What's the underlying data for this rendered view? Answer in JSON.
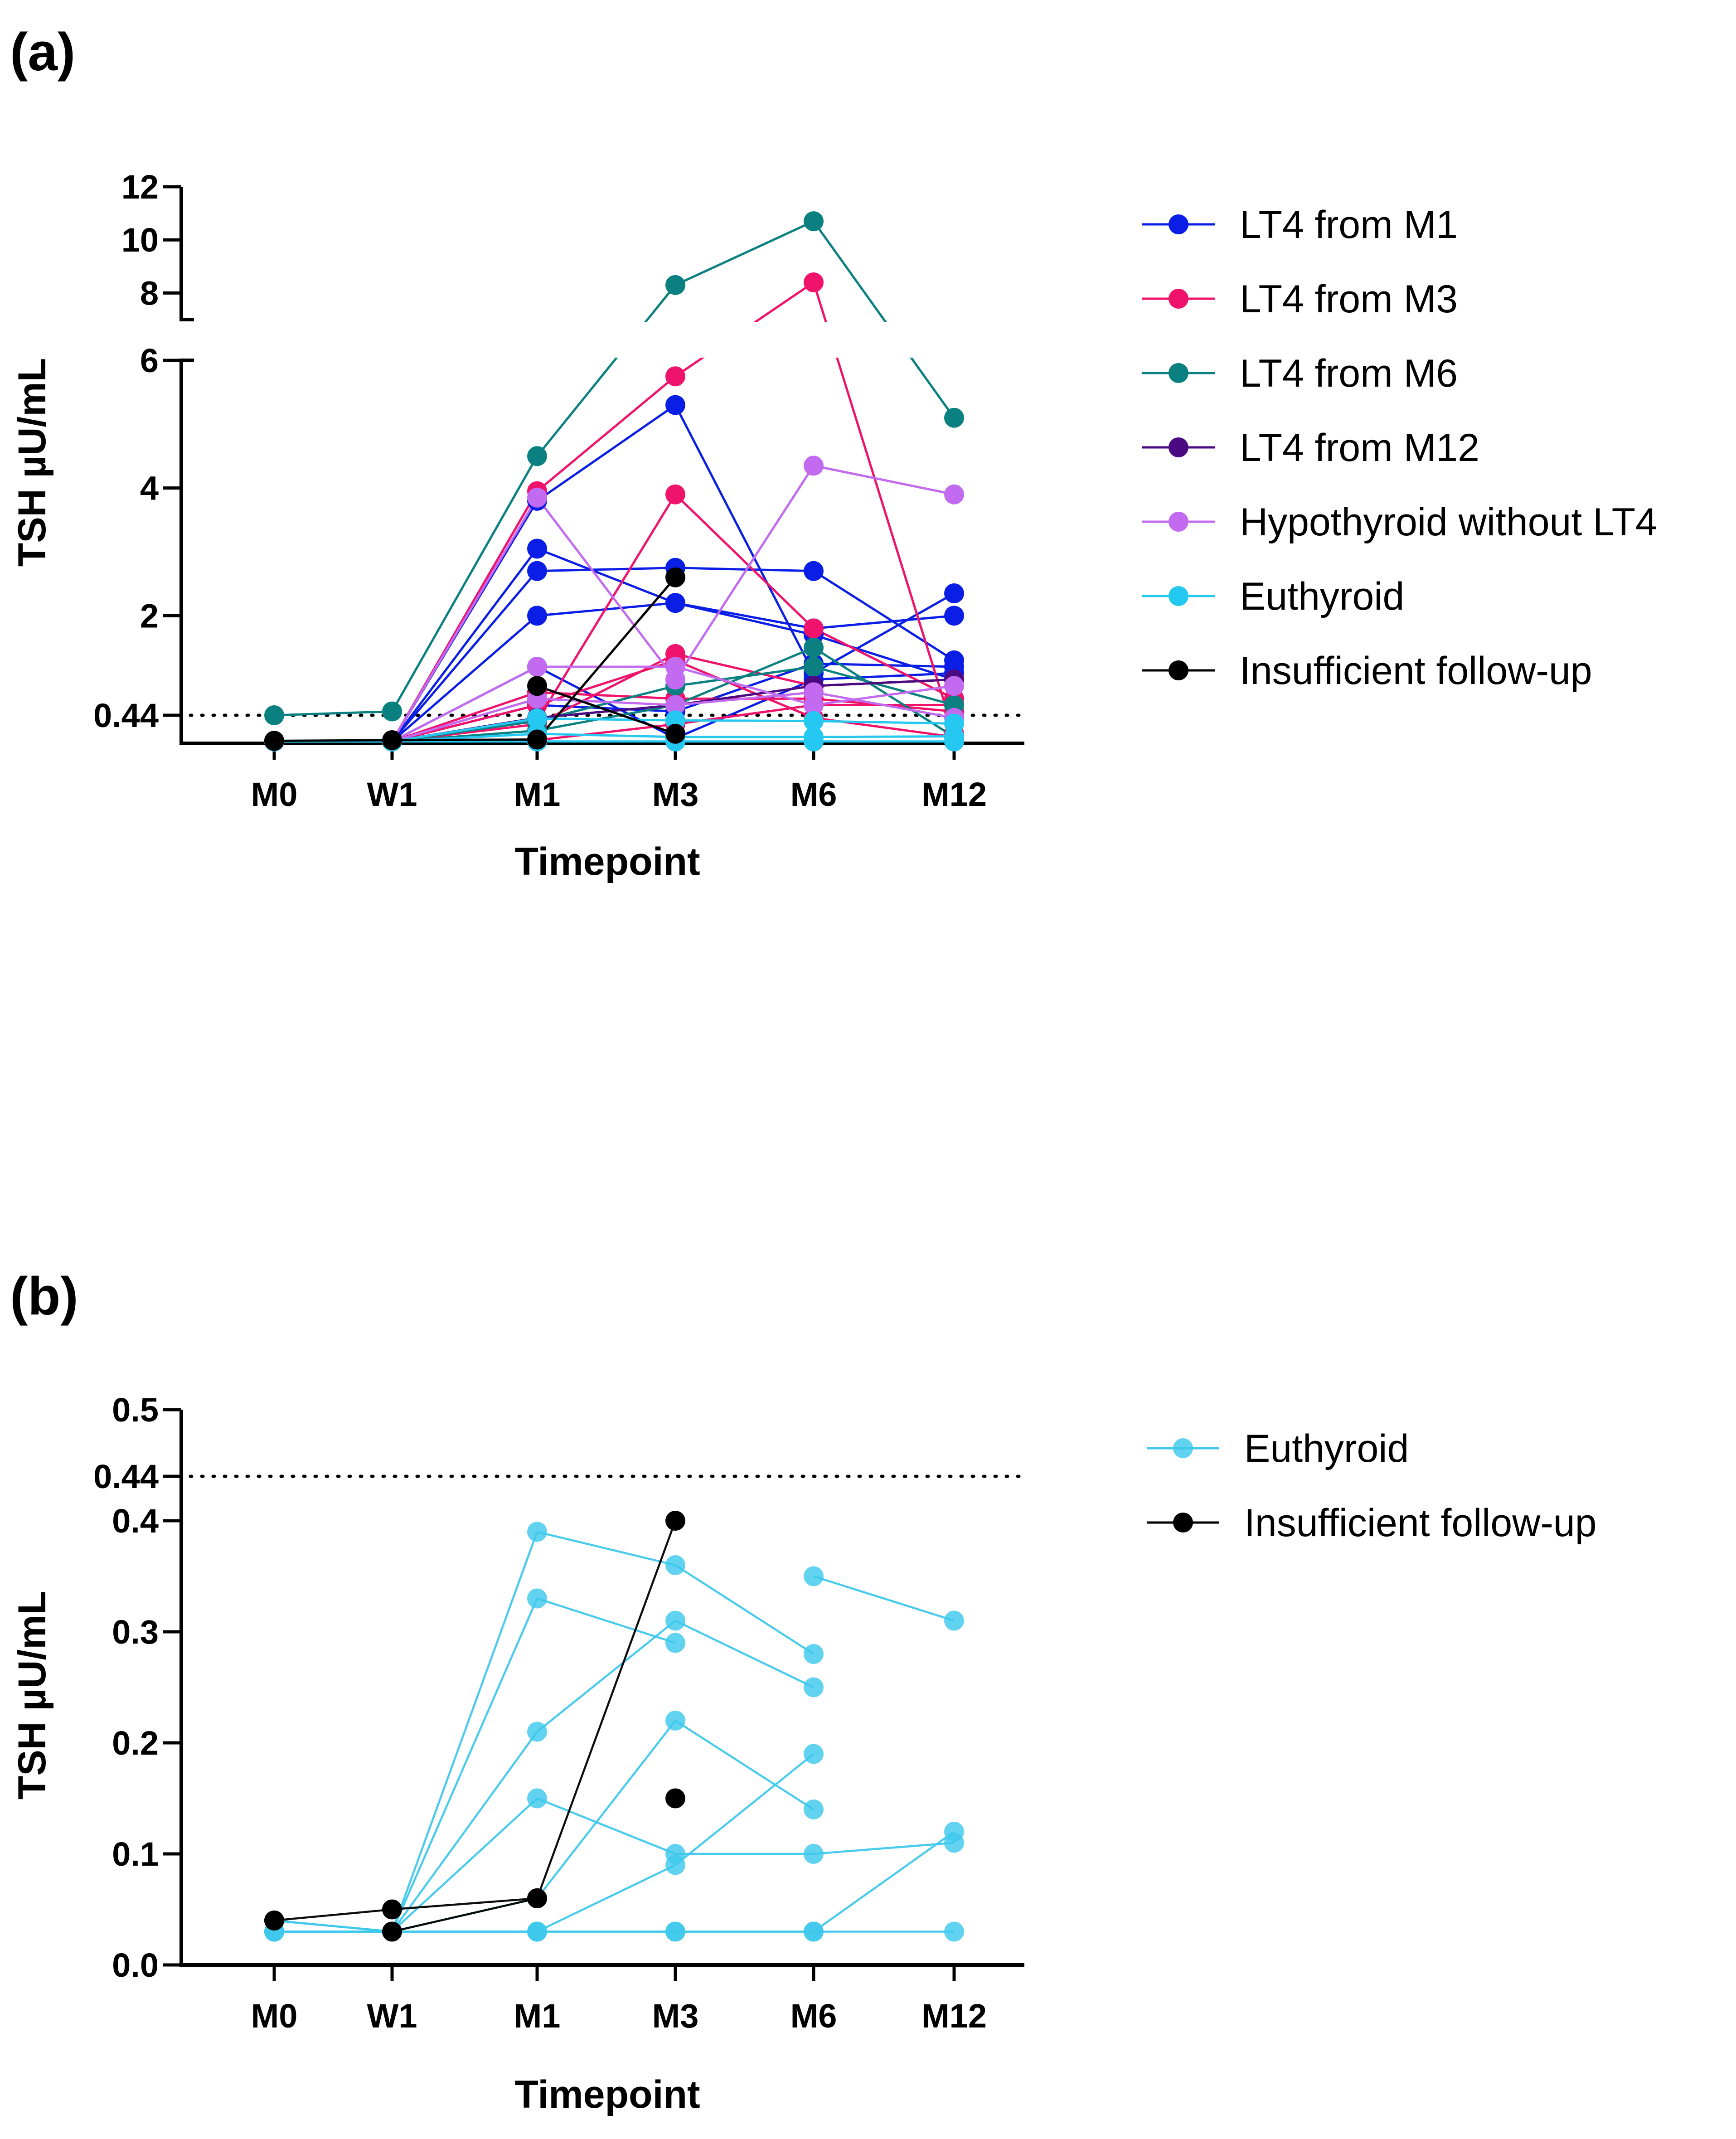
{
  "chart_data": [
    {
      "panel_label": "(a)",
      "type": "line",
      "xlabel": "Timepoint",
      "ylabel": "TSH µU/mL",
      "categories": [
        "M0",
        "W1",
        "M1",
        "M3",
        "M6",
        "M12"
      ],
      "y_axis": {
        "broken": true,
        "lower_range": [
          0,
          6
        ],
        "upper_range": [
          7,
          12
        ],
        "lower_ticks": [
          "0.44",
          "2",
          "4",
          "6"
        ],
        "upper_ticks": [
          "8",
          "10",
          "12"
        ]
      },
      "reference_line": {
        "value": 0.44,
        "style": "dotted"
      },
      "legend_position": "right",
      "series": [
        {
          "group": "LT4 from M1",
          "legend": true,
          "color": "#0a1ee6",
          "values": [
            0.03,
            0.03,
            3.8,
            5.3,
            1.1,
            2.35
          ]
        },
        {
          "group": "LT4 from M1",
          "legend": false,
          "color": "#0a1ee6",
          "values": [
            0.03,
            0.03,
            3.05,
            2.2,
            1.8,
            2.0
          ]
        },
        {
          "group": "LT4 from M1",
          "legend": false,
          "color": "#0a1ee6",
          "values": [
            0.03,
            0.03,
            2.7,
            2.75,
            2.7,
            1.3
          ]
        },
        {
          "group": "LT4 from M1",
          "legend": false,
          "color": "#0a1ee6",
          "values": [
            0.03,
            0.03,
            2.0,
            2.2,
            1.7,
            1.0
          ]
        },
        {
          "group": "LT4 from M1",
          "legend": false,
          "color": "#0a1ee6",
          "values": [
            0.03,
            0.03,
            1.2,
            0.08,
            1.0,
            1.1
          ]
        },
        {
          "group": "LT4 from M1",
          "legend": false,
          "color": "#0a1ee6",
          "values": [
            0.03,
            0.03,
            0.6,
            0.5,
            1.25,
            1.2
          ]
        },
        {
          "group": "LT4 from M3",
          "legend": true,
          "color": "#f0136b",
          "values": [
            0.03,
            0.03,
            3.95,
            5.75,
            8.4,
            0.15
          ]
        },
        {
          "group": "LT4 from M3",
          "legend": false,
          "color": "#f0136b",
          "values": [
            0.03,
            0.03,
            0.35,
            3.9,
            1.8,
            0.7
          ]
        },
        {
          "group": "LT4 from M3",
          "legend": false,
          "color": "#f0136b",
          "values": [
            0.03,
            0.03,
            0.3,
            1.4,
            0.9,
            1.0
          ]
        },
        {
          "group": "LT4 from M3",
          "legend": false,
          "color": "#f0136b",
          "values": [
            0.03,
            0.03,
            0.6,
            1.3,
            0.4,
            0.1
          ]
        },
        {
          "group": "LT4 from M3",
          "legend": false,
          "color": "#f0136b",
          "values": [
            0.03,
            0.03,
            0.8,
            0.7,
            0.7,
            0.5
          ]
        },
        {
          "group": "LT4 from M3",
          "legend": false,
          "color": "#f0136b",
          "values": [
            0.03,
            0.03,
            0.05,
            0.3,
            0.6,
            0.6
          ]
        },
        {
          "group": "LT4 from M6",
          "legend": true,
          "color": "#0b8080",
          "values": [
            0.44,
            0.5,
            4.5,
            8.3,
            10.7,
            5.1
          ]
        },
        {
          "group": "LT4 from M6",
          "legend": false,
          "color": "#0b8080",
          "values": [
            0.03,
            0.03,
            0.35,
            0.9,
            1.2,
            0.6
          ]
        },
        {
          "group": "LT4 from M6",
          "legend": false,
          "color": "#0b8080",
          "values": [
            0.03,
            0.03,
            0.2,
            0.6,
            1.5,
            0.1
          ]
        },
        {
          "group": "LT4 from M12",
          "legend": true,
          "color": "#4a0a82",
          "values": [
            0.03,
            0.03,
            0.4,
            0.6,
            0.9,
            1.0
          ]
        },
        {
          "group": "Hypothyroid without LT4",
          "legend": true,
          "color": "#c26af0",
          "values": [
            0.03,
            0.03,
            3.85,
            1.0,
            4.35,
            3.9
          ]
        },
        {
          "group": "Hypothyroid without LT4",
          "legend": false,
          "color": "#c26af0",
          "values": [
            0.03,
            0.03,
            1.2,
            1.2,
            0.6,
            0.9
          ]
        },
        {
          "group": "Hypothyroid without LT4",
          "legend": false,
          "color": "#c26af0",
          "values": [
            0.03,
            0.03,
            0.7,
            0.6,
            0.8,
            0.4
          ]
        },
        {
          "group": "Euthyroid",
          "legend": true,
          "color": "#25c8f0",
          "values": [
            0.04,
            0.03,
            0.39,
            0.36,
            0.35,
            0.31
          ]
        },
        {
          "group": "Euthyroid",
          "legend": false,
          "color": "#25c8f0",
          "values": [
            0.03,
            0.03,
            0.15,
            0.1,
            0.1,
            0.11
          ]
        },
        {
          "group": "Euthyroid",
          "legend": false,
          "color": "#25c8f0",
          "values": [
            0.03,
            0.03,
            0.03,
            0.03,
            0.03,
            0.03
          ]
        },
        {
          "group": "Insufficient follow-up",
          "legend": true,
          "color": "#000000",
          "values": [
            0.04,
            0.05,
            0.06,
            2.6,
            null,
            null
          ]
        },
        {
          "group": "Insufficient follow-up",
          "legend": false,
          "color": "#000000",
          "values": [
            0.04,
            null,
            0.9,
            0.15,
            null,
            null
          ]
        }
      ]
    },
    {
      "panel_label": "(b)",
      "type": "line",
      "xlabel": "Timepoint",
      "ylabel": "TSH µU/mL",
      "categories": [
        "M0",
        "W1",
        "M1",
        "M3",
        "M6",
        "M12"
      ],
      "ylim": [
        0,
        0.5
      ],
      "yticks": [
        "0.0",
        "0.1",
        "0.2",
        "0.3",
        "0.4",
        "0.44",
        "0.5"
      ],
      "reference_line": {
        "value": 0.44,
        "style": "dotted"
      },
      "legend_position": "right",
      "series": [
        {
          "group": "Euthyroid",
          "legend": true,
          "color": "#3ec8ec",
          "values": [
            0.04,
            0.03,
            0.39,
            0.36,
            0.28,
            null
          ]
        },
        {
          "group": "Euthyroid",
          "legend": false,
          "color": "#3ec8ec",
          "values": [
            0.03,
            0.03,
            0.33,
            0.29,
            null,
            null
          ]
        },
        {
          "group": "Euthyroid",
          "legend": false,
          "color": "#3ec8ec",
          "values": [
            0.04,
            0.03,
            0.21,
            0.31,
            0.25,
            null
          ]
        },
        {
          "group": "Euthyroid",
          "legend": false,
          "color": "#3ec8ec",
          "values": [
            0.03,
            0.03,
            0.15,
            0.1,
            0.1,
            0.11
          ]
        },
        {
          "group": "Euthyroid",
          "legend": false,
          "color": "#3ec8ec",
          "values": [
            0.04,
            0.03,
            0.06,
            0.22,
            0.14,
            null
          ]
        },
        {
          "group": "Euthyroid",
          "legend": false,
          "color": "#3ec8ec",
          "values": [
            0.03,
            0.03,
            0.03,
            0.09,
            0.19,
            null
          ]
        },
        {
          "group": "Euthyroid",
          "legend": false,
          "color": "#3ec8ec",
          "values": [
            null,
            null,
            null,
            null,
            0.35,
            0.31
          ]
        },
        {
          "group": "Euthyroid",
          "legend": false,
          "color": "#3ec8ec",
          "values": [
            0.03,
            0.03,
            0.03,
            0.03,
            0.03,
            0.12
          ]
        },
        {
          "group": "Euthyroid",
          "legend": false,
          "color": "#3ec8ec",
          "values": [
            0.03,
            0.03,
            0.03,
            0.03,
            0.03,
            0.03
          ]
        },
        {
          "group": "Insufficient follow-up",
          "legend": true,
          "color": "#000000",
          "values": [
            0.04,
            0.05,
            0.06,
            0.4,
            null,
            null
          ]
        },
        {
          "group": "Insufficient follow-up",
          "legend": false,
          "color": "#000000",
          "values": [
            0.04,
            null,
            null,
            0.15,
            null,
            null
          ]
        },
        {
          "group": "Insufficient follow-up",
          "legend": false,
          "color": "#000000",
          "values": [
            null,
            0.03,
            0.06,
            null,
            null,
            null
          ]
        }
      ]
    }
  ]
}
